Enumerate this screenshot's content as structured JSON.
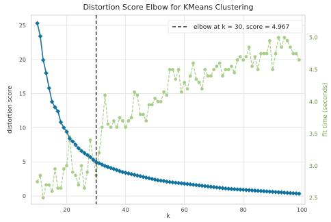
{
  "chart_data": {
    "type": "line",
    "title": "Distortion Score Elbow for KMeans Clustering",
    "xlabel": "k",
    "ylabel": "distortion score",
    "y2label": "fit time (seconds)",
    "xlim": [
      8,
      101
    ],
    "ylim": [
      -1.2,
      26.5
    ],
    "y2lim": [
      2.4,
      5.35
    ],
    "xticks": [
      "20",
      "40",
      "60",
      "80",
      "100"
    ],
    "yticks": [
      "0",
      "5",
      "10",
      "15",
      "20",
      "25"
    ],
    "y2ticks": [
      "2.5",
      "3.0",
      "3.5",
      "4.0",
      "4.5",
      "5.0"
    ],
    "grid": true,
    "legend": {
      "label": "elbow at $k = 30$, $score = 4.967$",
      "display": "elbow at k = 30, score = 4.967",
      "placement": "top-right"
    },
    "elbow_k": 30,
    "x": [
      10,
      11,
      12,
      13,
      14,
      15,
      16,
      17,
      18,
      19,
      20,
      21,
      22,
      23,
      24,
      25,
      26,
      27,
      28,
      29,
      30,
      31,
      32,
      33,
      34,
      35,
      36,
      37,
      38,
      39,
      40,
      41,
      42,
      43,
      44,
      45,
      46,
      47,
      48,
      49,
      50,
      51,
      52,
      53,
      54,
      55,
      56,
      57,
      58,
      59,
      60,
      61,
      62,
      63,
      64,
      65,
      66,
      67,
      68,
      69,
      70,
      71,
      72,
      73,
      74,
      75,
      76,
      77,
      78,
      79,
      80,
      81,
      82,
      83,
      84,
      85,
      86,
      87,
      88,
      89,
      90,
      91,
      92,
      93,
      94,
      95,
      96,
      97,
      98,
      99
    ],
    "series": [
      {
        "axis": "left",
        "values": [
          25.3,
          23.4,
          19.9,
          18.0,
          15.8,
          13.8,
          13.0,
          12.4,
          10.8,
          10.0,
          9.4,
          8.4,
          8.0,
          7.5,
          7.0,
          6.6,
          6.3,
          6.0,
          5.7,
          5.3,
          4.967,
          4.8,
          4.6,
          4.4,
          4.25,
          4.1,
          3.95,
          3.8,
          3.65,
          3.5,
          3.4,
          3.3,
          3.2,
          3.1,
          3.0,
          2.9,
          2.8,
          2.7,
          2.6,
          2.5,
          2.4,
          2.3,
          2.25,
          2.2,
          2.1,
          2.05,
          2.0,
          1.95,
          1.9,
          1.85,
          1.8,
          1.75,
          1.7,
          1.65,
          1.6,
          1.55,
          1.5,
          1.45,
          1.4,
          1.35,
          1.3,
          1.25,
          1.2,
          1.15,
          1.1,
          1.06,
          1.03,
          1.0,
          0.97,
          0.94,
          0.91,
          0.88,
          0.85,
          0.82,
          0.79,
          0.76,
          0.73,
          0.7,
          0.67,
          0.64,
          0.61,
          0.58,
          0.55,
          0.52,
          0.49,
          0.46,
          0.43,
          0.4,
          0.37,
          0.34
        ]
      },
      {
        "axis": "right",
        "values": [
          2.75,
          2.85,
          2.5,
          2.7,
          2.7,
          2.6,
          2.95,
          2.65,
          2.65,
          2.95,
          3.0,
          3.45,
          2.9,
          2.85,
          2.7,
          3.0,
          2.65,
          2.9,
          3.4,
          3.1,
          2.85,
          3.2,
          3.6,
          4.1,
          3.65,
          3.6,
          3.7,
          3.6,
          3.75,
          3.7,
          3.6,
          3.7,
          3.75,
          4.15,
          4.1,
          3.8,
          3.8,
          3.7,
          3.95,
          3.95,
          4.05,
          4.0,
          4.0,
          4.15,
          4.1,
          4.5,
          4.5,
          4.35,
          4.5,
          4.15,
          4.3,
          4.2,
          4.4,
          4.6,
          4.35,
          4.3,
          4.2,
          4.5,
          4.4,
          4.4,
          4.5,
          4.55,
          4.6,
          4.4,
          4.5,
          4.5,
          4.55,
          4.45,
          4.65,
          4.7,
          4.65,
          4.7,
          4.85,
          4.55,
          4.7,
          4.5,
          4.75,
          4.75,
          4.75,
          4.95,
          4.5,
          4.75,
          5.0,
          4.85,
          5.0,
          4.95,
          4.85,
          4.75,
          4.75,
          4.65
        ]
      }
    ]
  }
}
